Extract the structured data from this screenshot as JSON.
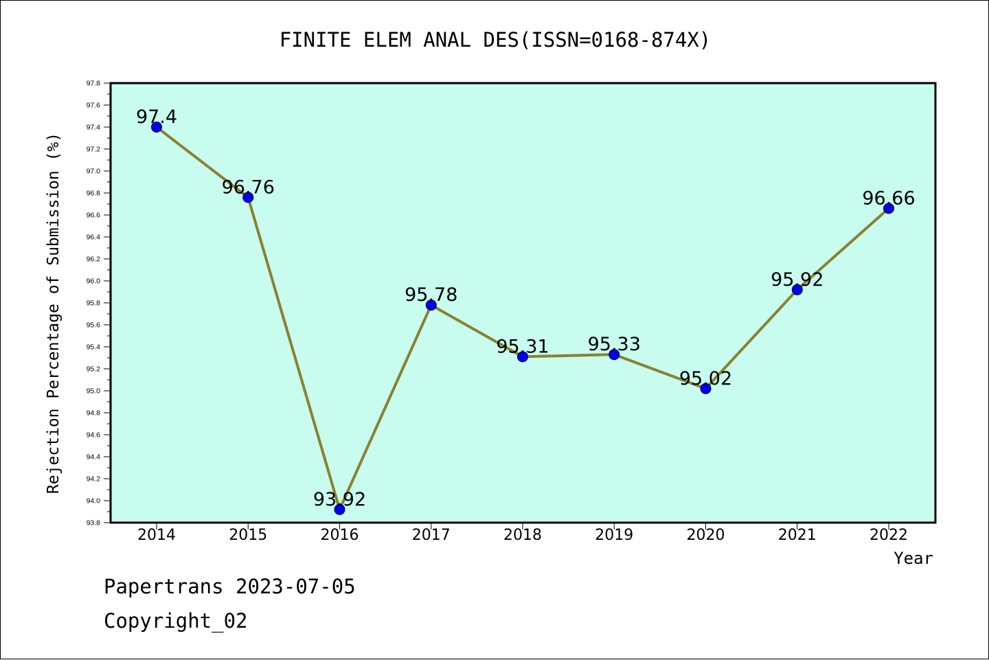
{
  "chart_data": {
    "type": "line",
    "title": "FINITE ELEM ANAL DES(ISSN=0168-874X)",
    "xlabel": "Year",
    "ylabel": "Rejection Percentage of Submission (%)",
    "categories": [
      "2014",
      "2015",
      "2016",
      "2017",
      "2018",
      "2019",
      "2020",
      "2021",
      "2022"
    ],
    "values": [
      97.4,
      96.76,
      93.92,
      95.78,
      95.31,
      95.33,
      95.02,
      95.92,
      96.66
    ],
    "data_labels": [
      "97.4",
      "96.76",
      "93.92",
      "95.78",
      "95.31",
      "95.33",
      "95.02",
      "95.92",
      "96.66"
    ],
    "ylim": [
      93.8,
      97.8
    ],
    "yticks": [
      "93.8",
      "94.0",
      "94.2",
      "94.4",
      "94.6",
      "94.8",
      "95.0",
      "95.2",
      "95.4",
      "95.6",
      "95.8",
      "96.0",
      "96.2",
      "96.4",
      "96.6",
      "96.8",
      "97.0",
      "97.2",
      "97.4",
      "97.6",
      "97.8"
    ],
    "grid": false,
    "legend": "none",
    "colors": {
      "plot_background": "#c8fcee",
      "line": "#8b8032",
      "marker": "#0000ee"
    }
  },
  "footer": {
    "line1": "Papertrans 2023-07-05",
    "line2": "Copyright_02"
  }
}
